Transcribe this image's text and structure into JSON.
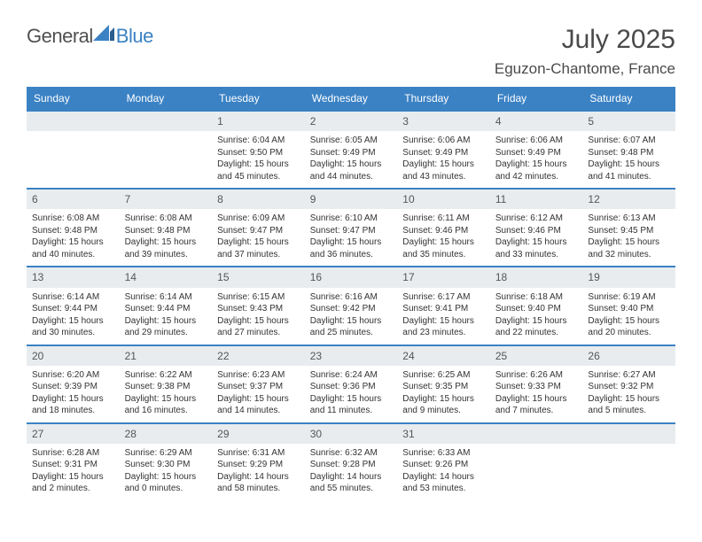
{
  "logo": {
    "general": "General",
    "blue": "Blue"
  },
  "title": "July 2025",
  "location": "Eguzon-Chantome, France",
  "colors": {
    "header_bg": "#3b82c4",
    "header_text": "#ffffff",
    "daynum_bg": "#e8ecef",
    "border": "#3b82c4",
    "text": "#333333",
    "title_text": "#4a4a4a"
  },
  "dayheads": [
    "Sunday",
    "Monday",
    "Tuesday",
    "Wednesday",
    "Thursday",
    "Friday",
    "Saturday"
  ],
  "weeks": [
    [
      null,
      null,
      {
        "n": "1",
        "sr": "6:04 AM",
        "ss": "9:50 PM",
        "dh": "15",
        "dm": "45"
      },
      {
        "n": "2",
        "sr": "6:05 AM",
        "ss": "9:49 PM",
        "dh": "15",
        "dm": "44"
      },
      {
        "n": "3",
        "sr": "6:06 AM",
        "ss": "9:49 PM",
        "dh": "15",
        "dm": "43"
      },
      {
        "n": "4",
        "sr": "6:06 AM",
        "ss": "9:49 PM",
        "dh": "15",
        "dm": "42"
      },
      {
        "n": "5",
        "sr": "6:07 AM",
        "ss": "9:48 PM",
        "dh": "15",
        "dm": "41"
      }
    ],
    [
      {
        "n": "6",
        "sr": "6:08 AM",
        "ss": "9:48 PM",
        "dh": "15",
        "dm": "40"
      },
      {
        "n": "7",
        "sr": "6:08 AM",
        "ss": "9:48 PM",
        "dh": "15",
        "dm": "39"
      },
      {
        "n": "8",
        "sr": "6:09 AM",
        "ss": "9:47 PM",
        "dh": "15",
        "dm": "37"
      },
      {
        "n": "9",
        "sr": "6:10 AM",
        "ss": "9:47 PM",
        "dh": "15",
        "dm": "36"
      },
      {
        "n": "10",
        "sr": "6:11 AM",
        "ss": "9:46 PM",
        "dh": "15",
        "dm": "35"
      },
      {
        "n": "11",
        "sr": "6:12 AM",
        "ss": "9:46 PM",
        "dh": "15",
        "dm": "33"
      },
      {
        "n": "12",
        "sr": "6:13 AM",
        "ss": "9:45 PM",
        "dh": "15",
        "dm": "32"
      }
    ],
    [
      {
        "n": "13",
        "sr": "6:14 AM",
        "ss": "9:44 PM",
        "dh": "15",
        "dm": "30"
      },
      {
        "n": "14",
        "sr": "6:14 AM",
        "ss": "9:44 PM",
        "dh": "15",
        "dm": "29"
      },
      {
        "n": "15",
        "sr": "6:15 AM",
        "ss": "9:43 PM",
        "dh": "15",
        "dm": "27"
      },
      {
        "n": "16",
        "sr": "6:16 AM",
        "ss": "9:42 PM",
        "dh": "15",
        "dm": "25"
      },
      {
        "n": "17",
        "sr": "6:17 AM",
        "ss": "9:41 PM",
        "dh": "15",
        "dm": "23"
      },
      {
        "n": "18",
        "sr": "6:18 AM",
        "ss": "9:40 PM",
        "dh": "15",
        "dm": "22"
      },
      {
        "n": "19",
        "sr": "6:19 AM",
        "ss": "9:40 PM",
        "dh": "15",
        "dm": "20"
      }
    ],
    [
      {
        "n": "20",
        "sr": "6:20 AM",
        "ss": "9:39 PM",
        "dh": "15",
        "dm": "18"
      },
      {
        "n": "21",
        "sr": "6:22 AM",
        "ss": "9:38 PM",
        "dh": "15",
        "dm": "16"
      },
      {
        "n": "22",
        "sr": "6:23 AM",
        "ss": "9:37 PM",
        "dh": "15",
        "dm": "14"
      },
      {
        "n": "23",
        "sr": "6:24 AM",
        "ss": "9:36 PM",
        "dh": "15",
        "dm": "11"
      },
      {
        "n": "24",
        "sr": "6:25 AM",
        "ss": "9:35 PM",
        "dh": "15",
        "dm": "9"
      },
      {
        "n": "25",
        "sr": "6:26 AM",
        "ss": "9:33 PM",
        "dh": "15",
        "dm": "7"
      },
      {
        "n": "26",
        "sr": "6:27 AM",
        "ss": "9:32 PM",
        "dh": "15",
        "dm": "5"
      }
    ],
    [
      {
        "n": "27",
        "sr": "6:28 AM",
        "ss": "9:31 PM",
        "dh": "15",
        "dm": "2"
      },
      {
        "n": "28",
        "sr": "6:29 AM",
        "ss": "9:30 PM",
        "dh": "15",
        "dm": "0"
      },
      {
        "n": "29",
        "sr": "6:31 AM",
        "ss": "9:29 PM",
        "dh": "14",
        "dm": "58"
      },
      {
        "n": "30",
        "sr": "6:32 AM",
        "ss": "9:28 PM",
        "dh": "14",
        "dm": "55"
      },
      {
        "n": "31",
        "sr": "6:33 AM",
        "ss": "9:26 PM",
        "dh": "14",
        "dm": "53"
      },
      null,
      null
    ]
  ],
  "labels": {
    "sunrise": "Sunrise:",
    "sunset": "Sunset:",
    "daylight": "Daylight:",
    "hours": "hours",
    "and": "and",
    "minutes": "minutes."
  }
}
